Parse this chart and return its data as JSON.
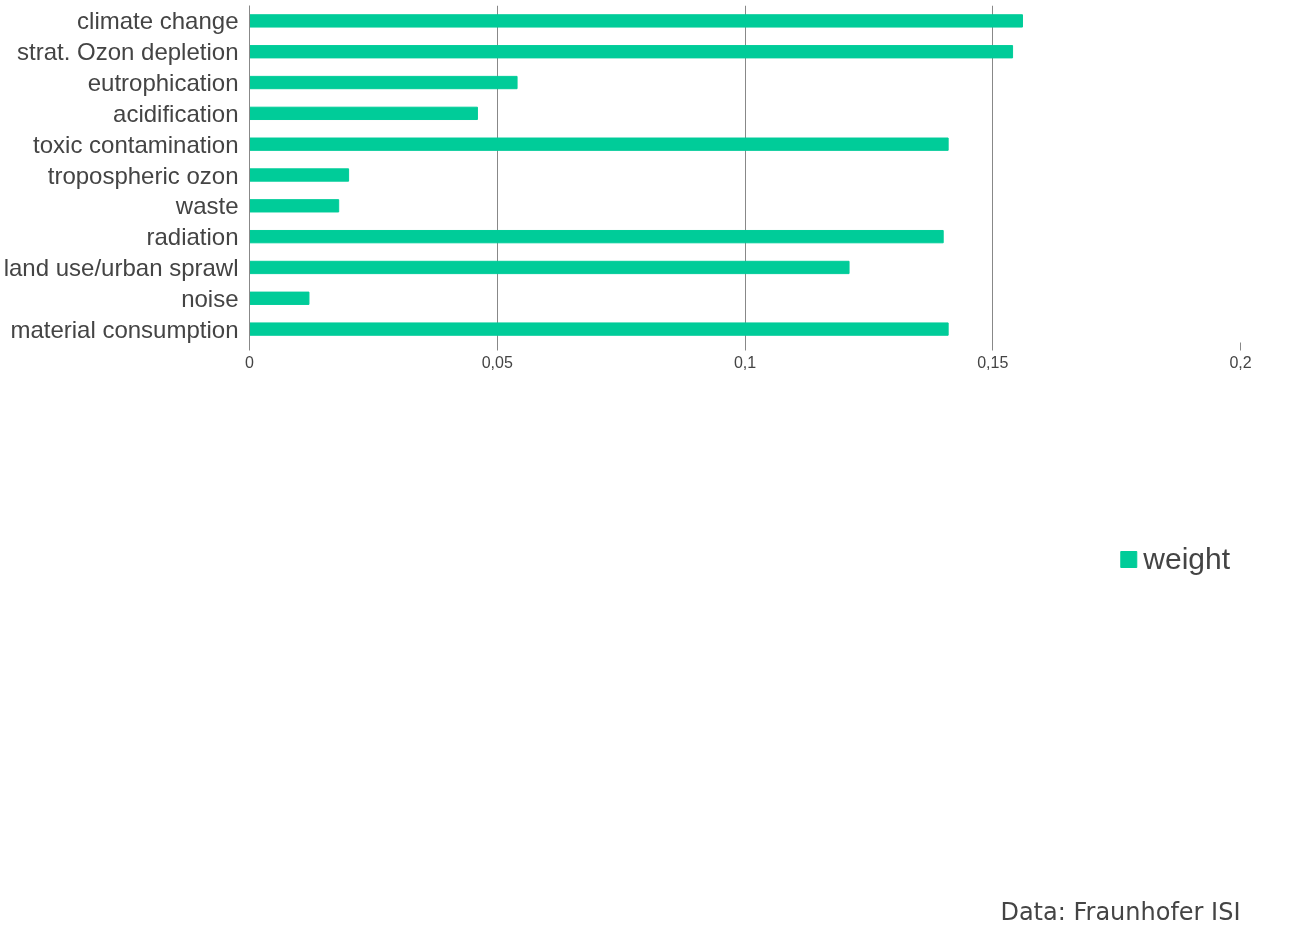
{
  "chart_data": {
    "type": "bar",
    "orientation": "horizontal",
    "categories": [
      "climate change",
      "strat. Ozon depletion",
      "eutrophication",
      "acidification",
      "toxic contamination",
      "tropospheric ozon",
      "waste",
      "radiation",
      "land use/urban sprawl",
      "noise",
      "material consumption"
    ],
    "series": [
      {
        "name": "weight",
        "color": "#00cc99",
        "values": [
          0.156,
          0.154,
          0.054,
          0.046,
          0.141,
          0.02,
          0.018,
          0.14,
          0.121,
          0.012,
          0.141
        ]
      }
    ],
    "xlim": [
      0,
      0.2
    ],
    "xticks": [
      0,
      {
        "value": 0.05,
        "label": "0,05"
      },
      {
        "value": 0.1,
        "label": "0,1"
      },
      {
        "value": 0.15,
        "label": "0,15"
      },
      {
        "value": 0.2,
        "label": "0,2"
      }
    ],
    "grid": "x",
    "legend": "bottom",
    "annotations": [
      "Data: Fraunhofer ISI"
    ]
  }
}
